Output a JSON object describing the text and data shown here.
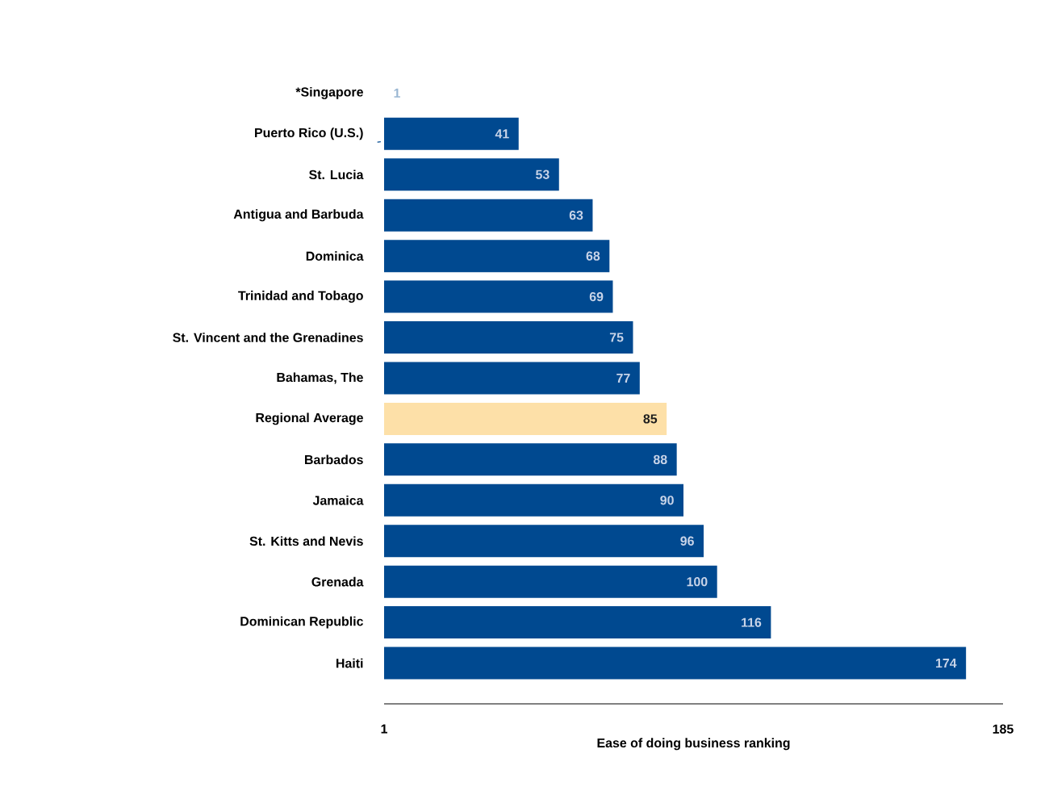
{
  "chart_data": {
    "type": "bar",
    "orientation": "horizontal",
    "xlabel": "Ease of doing business ranking",
    "categories": [
      "*Singapore",
      "Puerto Rico (U.S.)",
      "St. Lucia",
      "Antigua and Barbuda",
      "Dominica",
      "Trinidad and Tobago",
      "St. Vincent and the Grenadines",
      "Bahamas, The",
      "Regional Average",
      "Barbados",
      "Jamaica",
      "St. Kitts and Nevis",
      "Grenada",
      "Dominican Republic",
      "Haiti"
    ],
    "values": [
      1,
      41,
      53,
      63,
      68,
      69,
      75,
      77,
      85,
      88,
      90,
      96,
      100,
      116,
      174
    ],
    "colors": [
      "#004990",
      "#004990",
      "#004990",
      "#004990",
      "#004990",
      "#004990",
      "#004990",
      "#004990",
      "#fde0a8",
      "#004990",
      "#004990",
      "#004990",
      "#004990",
      "#004990",
      "#004990"
    ],
    "xlim": [
      1,
      185
    ],
    "xticks": [
      1,
      185
    ],
    "data_labels": true
  }
}
